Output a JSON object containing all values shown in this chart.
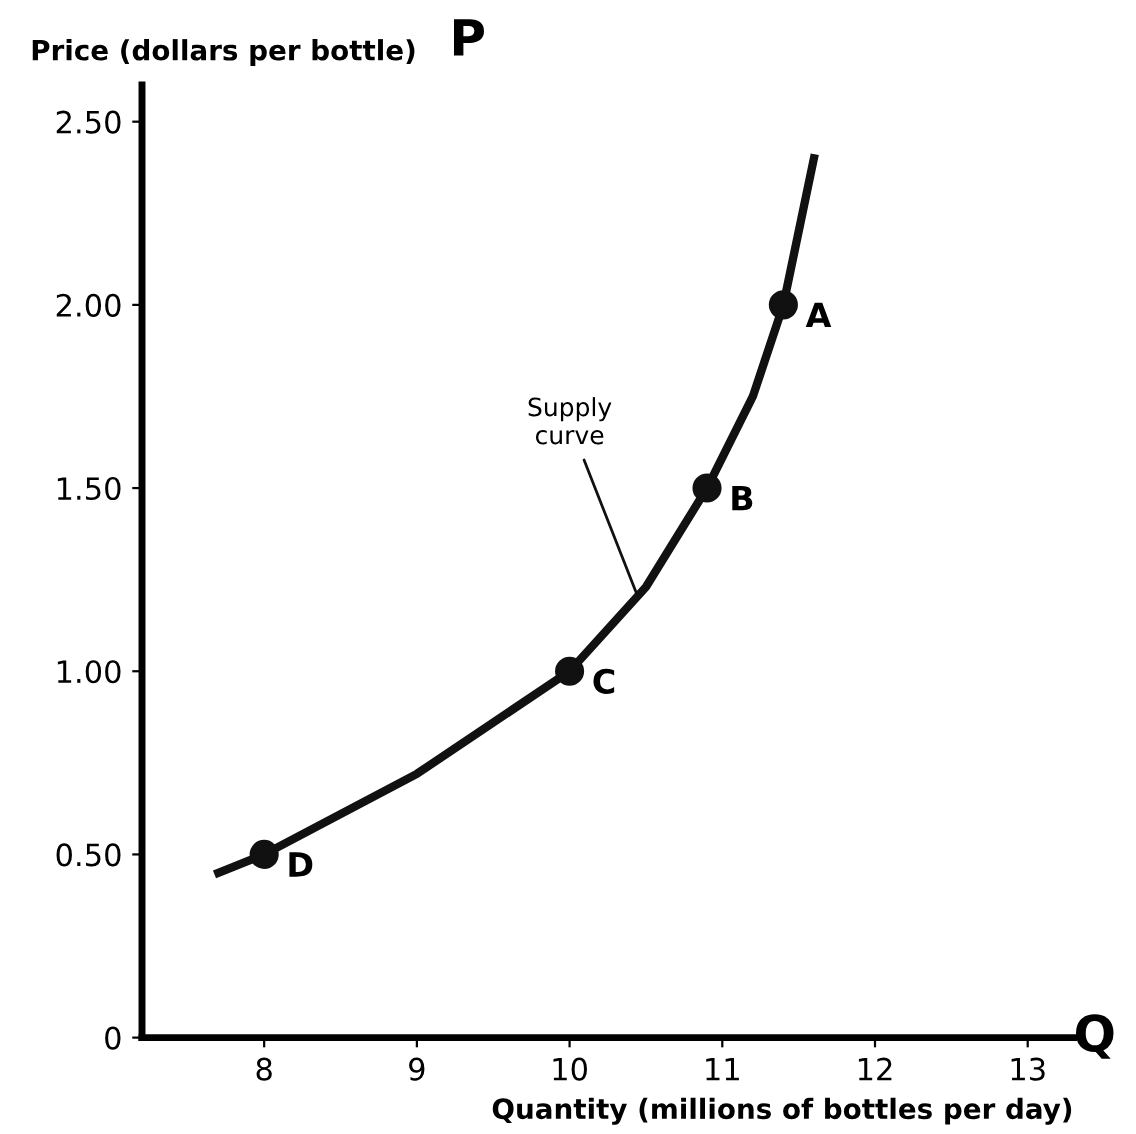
{
  "chart_data": {
    "type": "line",
    "xlabel": "Quantity (millions of bottles per day)",
    "ylabel": "Price (dollars per bottle)",
    "xlim": [
      7.2,
      13.3
    ],
    "ylim": [
      0,
      2.6
    ],
    "xticks": [
      8,
      9,
      10,
      11,
      12,
      13
    ],
    "yticks": [
      {
        "value": 0,
        "label": "0"
      },
      {
        "value": 0.5,
        "label": "0.50"
      },
      {
        "value": 1.0,
        "label": "1.00"
      },
      {
        "value": 1.5,
        "label": "1.50"
      },
      {
        "value": 2.0,
        "label": "2.00"
      },
      {
        "value": 2.5,
        "label": "2.50"
      }
    ],
    "grid": false,
    "series": [
      {
        "color": "#111111",
        "marker": "none",
        "line_style": "solid",
        "x": [
          7.7,
          8,
          9,
          10,
          10.5,
          10.9,
          11.2,
          11.4,
          11.6
        ],
        "values": [
          0.45,
          0.5,
          0.72,
          1.0,
          1.23,
          1.5,
          1.75,
          2.0,
          2.4
        ]
      },
      {
        "type": "scatter",
        "color": "#111111",
        "marker": "circle",
        "x": [
          8,
          10,
          10.9,
          11.4
        ],
        "values": [
          0.5,
          1.0,
          1.5,
          2.0
        ]
      }
    ],
    "annotations": [
      {
        "text": "D",
        "x": 8,
        "y": 0.5
      },
      {
        "text": "C",
        "x": 10,
        "y": 1.0
      },
      {
        "text": "B",
        "x": 10.9,
        "y": 1.5
      },
      {
        "text": "A",
        "x": 11.4,
        "y": 2.0
      },
      {
        "text": "Supply\ncurve",
        "x": 10.45,
        "y": 1.2
      },
      "P",
      "Q"
    ]
  }
}
